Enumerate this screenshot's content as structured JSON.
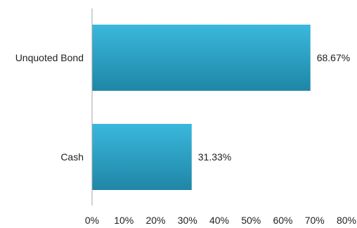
{
  "chart_data": {
    "type": "bar",
    "orientation": "horizontal",
    "categories": [
      "Unquoted Bond",
      "Cash"
    ],
    "values": [
      68.67,
      31.33
    ],
    "data_labels": [
      "68.67%",
      "31.33%"
    ],
    "xlim": [
      0,
      80
    ],
    "x_ticks": [
      0,
      10,
      20,
      30,
      40,
      50,
      60,
      70,
      80
    ],
    "x_tick_labels": [
      "0%",
      "10%",
      "20%",
      "30%",
      "40%",
      "50%",
      "60%",
      "70%",
      "80%"
    ],
    "grid": false,
    "legend": "none",
    "colors": {
      "bar_light": "#3ab8dc",
      "bar_dark": "#1f86a6",
      "axis": "#a6a6a6",
      "text": "#222222"
    }
  }
}
